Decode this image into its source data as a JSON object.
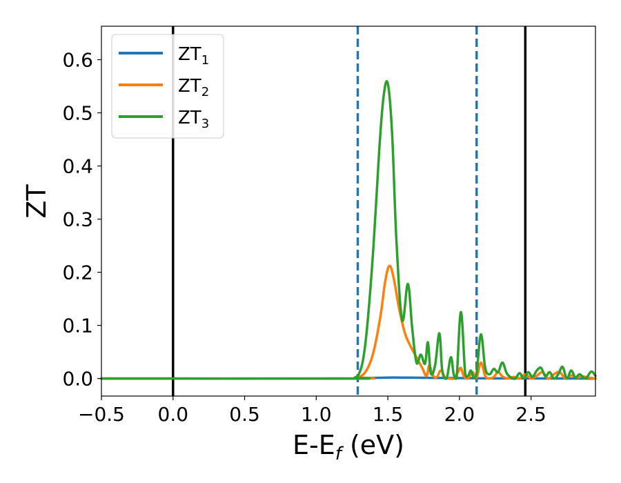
{
  "chart_data": {
    "type": "line",
    "title": "",
    "xlabel_main": "E-E",
    "xlabel_sub": "f",
    "xlabel_tail": " (eV)",
    "ylabel": "ZT",
    "xlim": [
      -0.5,
      2.95
    ],
    "ylim": [
      -0.033,
      0.663
    ],
    "xticks": [
      -0.5,
      0.0,
      0.5,
      1.0,
      1.5,
      2.0,
      2.5
    ],
    "xtick_labels": [
      "−0.5",
      "0.0",
      "0.5",
      "1.0",
      "1.5",
      "2.0",
      "2.5"
    ],
    "yticks": [
      0.0,
      0.1,
      0.2,
      0.3,
      0.4,
      0.5,
      0.6
    ],
    "ytick_labels": [
      "0.0",
      "0.1",
      "0.2",
      "0.3",
      "0.4",
      "0.5",
      "0.6"
    ],
    "grid": false,
    "legend_position": "top-left",
    "vlines": [
      {
        "x": 0.0,
        "style": "solid",
        "color": "#000000"
      },
      {
        "x": 2.46,
        "style": "solid",
        "color": "#000000"
      },
      {
        "x": 1.29,
        "style": "dashed",
        "color": "#1f77b4"
      },
      {
        "x": 2.12,
        "style": "dashed",
        "color": "#1f77b4"
      }
    ],
    "series": [
      {
        "name_main": "ZT",
        "name_sub": "1",
        "color": "#1f77b4",
        "x": [
          -0.5,
          1.2,
          1.3,
          1.4,
          1.5,
          1.6,
          1.7,
          1.8,
          1.9,
          2.0,
          2.1,
          2.2,
          2.3,
          2.5,
          2.7,
          2.95
        ],
        "y": [
          0,
          0,
          0.0005,
          0.0012,
          0.0018,
          0.0018,
          0.0015,
          0.0012,
          0.001,
          0.0008,
          0.0006,
          0.0004,
          0.0003,
          0.0002,
          0.0001,
          0
        ]
      },
      {
        "name_main": "ZT",
        "name_sub": "2",
        "color": "#ff7f0e",
        "x": [
          -0.5,
          1.25,
          1.3,
          1.35,
          1.4,
          1.45,
          1.48,
          1.51,
          1.54,
          1.58,
          1.62,
          1.66,
          1.7,
          1.74,
          1.77,
          1.79,
          1.81,
          1.84,
          1.87,
          1.9,
          1.93,
          1.96,
          1.99,
          2.01,
          2.03,
          2.06,
          2.09,
          2.12,
          2.15,
          2.18,
          2.21,
          2.24,
          2.27,
          2.3,
          2.34,
          2.38,
          2.42,
          2.46,
          2.5,
          2.54,
          2.58,
          2.62,
          2.66,
          2.7,
          2.74,
          2.78,
          2.82,
          2.86,
          2.9,
          2.95
        ],
        "y": [
          0,
          0,
          0.003,
          0.015,
          0.05,
          0.12,
          0.18,
          0.212,
          0.19,
          0.13,
          0.085,
          0.06,
          0.04,
          0.02,
          0.005,
          0.025,
          0.008,
          0.002,
          0.015,
          0.002,
          0.0,
          0.0,
          0.012,
          0.02,
          0.005,
          0.0,
          0.012,
          0.002,
          0.03,
          0.005,
          0.0,
          0.003,
          0.012,
          0.004,
          0.0,
          0.003,
          0.0,
          0.008,
          0.0,
          0.005,
          0.012,
          0.0,
          0.008,
          0.012,
          0.0,
          0.006,
          0.002,
          0.004,
          0.002,
          0.0
        ]
      },
      {
        "name_main": "ZT",
        "name_sub": "3",
        "color": "#2ca02c",
        "x": [
          -0.5,
          1.22,
          1.27,
          1.3,
          1.33,
          1.36,
          1.4,
          1.44,
          1.47,
          1.5,
          1.53,
          1.56,
          1.6,
          1.64,
          1.67,
          1.7,
          1.73,
          1.76,
          1.78,
          1.8,
          1.83,
          1.86,
          1.88,
          1.91,
          1.94,
          1.96,
          1.98,
          2.01,
          2.04,
          2.06,
          2.08,
          2.1,
          2.12,
          2.15,
          2.18,
          2.21,
          2.24,
          2.27,
          2.3,
          2.33,
          2.36,
          2.39,
          2.42,
          2.45,
          2.48,
          2.51,
          2.54,
          2.57,
          2.6,
          2.63,
          2.66,
          2.69,
          2.72,
          2.75,
          2.78,
          2.81,
          2.84,
          2.88,
          2.92,
          2.95
        ],
        "y": [
          0,
          0,
          0.002,
          0.01,
          0.04,
          0.11,
          0.25,
          0.43,
          0.53,
          0.555,
          0.46,
          0.26,
          0.11,
          0.178,
          0.095,
          0.03,
          0.045,
          0.028,
          0.068,
          0.01,
          0.025,
          0.085,
          0.015,
          0.0,
          0.04,
          0.008,
          0.0,
          0.125,
          0.01,
          0.005,
          0.015,
          0.002,
          0.01,
          0.083,
          0.02,
          0.008,
          0.018,
          0.012,
          0.03,
          0.01,
          0.002,
          0.0,
          0.01,
          0.0,
          0.012,
          0.003,
          0.015,
          0.02,
          0.004,
          0.012,
          0.0,
          0.008,
          0.022,
          0.0,
          0.015,
          0.002,
          0.008,
          0.0,
          0.013,
          0.005
        ]
      }
    ]
  }
}
